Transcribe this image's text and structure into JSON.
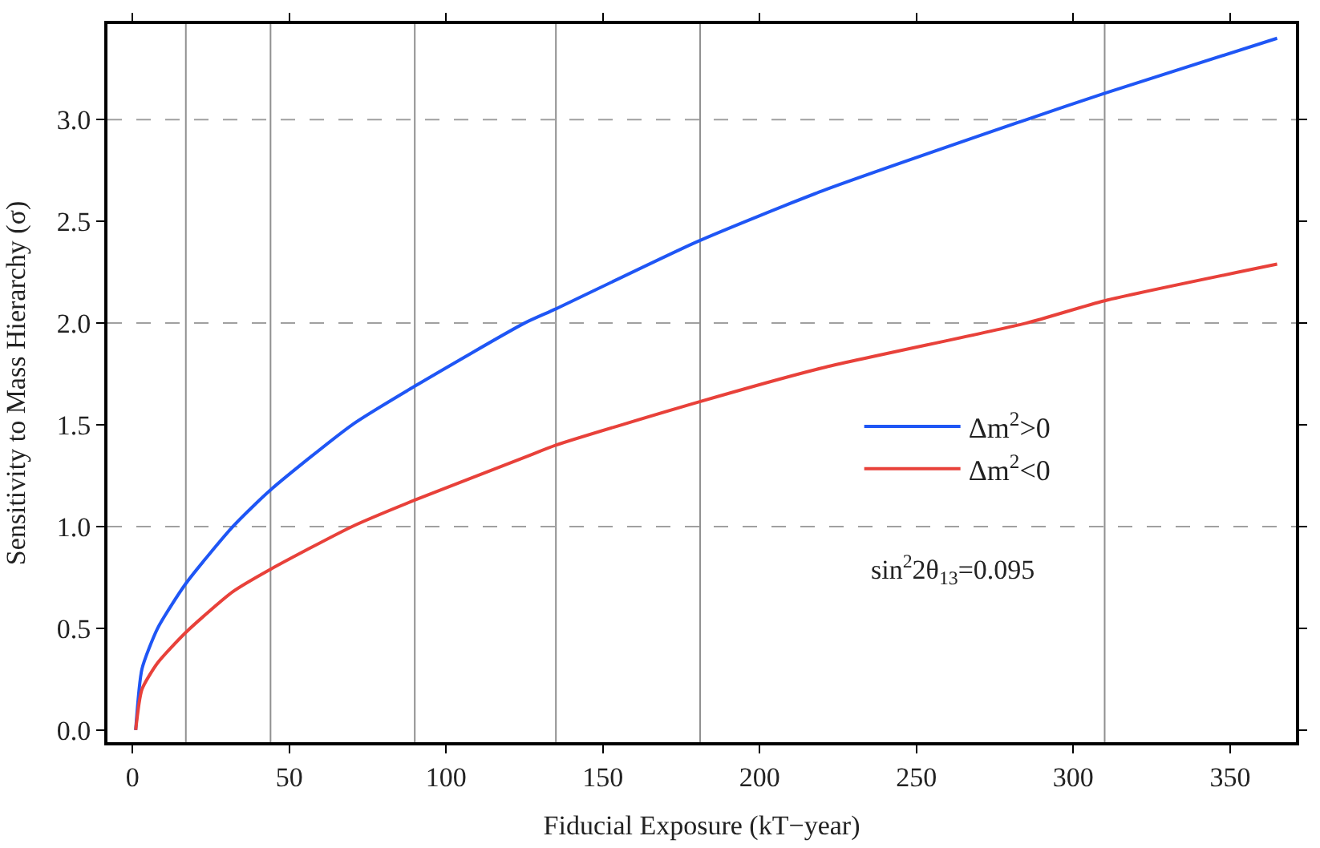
{
  "chart_data": {
    "type": "line",
    "xlabel": "Fiducial Exposure (kT−year)",
    "ylabel": "Sensitivity to Mass Hierarchy (σ)",
    "xlim": [
      -8,
      371
    ],
    "ylim": [
      -0.06,
      3.47
    ],
    "xticks": [
      0,
      50,
      100,
      150,
      200,
      250,
      300,
      350
    ],
    "yticks": [
      {
        "value": 0,
        "label": "0.0"
      },
      0.5,
      {
        "value": 1,
        "label": "1.0"
      },
      1.5,
      {
        "value": 2,
        "label": "2.0"
      },
      2.5,
      {
        "value": 3,
        "label": "3.0"
      }
    ],
    "x": [
      1,
      3,
      8,
      17,
      32,
      44,
      70,
      90,
      125,
      135,
      180,
      220,
      285,
      310,
      365
    ],
    "series": [
      {
        "name": "Δm$^{2}$>0",
        "color": "#1f56f5",
        "values": [
          0,
          0.3,
          0.5,
          0.72,
          1.0,
          1.18,
          1.5,
          1.69,
          2.0,
          2.07,
          2.4,
          2.65,
          3.0,
          3.13,
          3.4
        ]
      },
      {
        "name": "Δm$^{2}$<0",
        "color": "#e8413a",
        "values": [
          0,
          0.2,
          0.33,
          0.48,
          0.68,
          0.79,
          1.0,
          1.13,
          1.34,
          1.4,
          1.61,
          1.78,
          2.0,
          2.11,
          2.29
        ]
      }
    ],
    "ref_lines": [
      {
        "axis": "x",
        "value": 17,
        "color": "#909090",
        "line_style": "solid"
      },
      {
        "axis": "x",
        "value": 44,
        "color": "#909090",
        "line_style": "solid"
      },
      {
        "axis": "x",
        "value": 90,
        "color": "#909090",
        "line_style": "solid"
      },
      {
        "axis": "x",
        "value": 135,
        "color": "#909090",
        "line_style": "solid"
      },
      {
        "axis": "x",
        "value": 181,
        "color": "#909090",
        "line_style": "solid"
      },
      {
        "axis": "x",
        "value": 310,
        "color": "#909090",
        "line_style": "solid"
      },
      {
        "axis": "y",
        "value": 1,
        "color": "#a0a0a0",
        "line_style": "dashed"
      },
      {
        "axis": "y",
        "value": 2,
        "color": "#a0a0a0",
        "line_style": "dashed"
      },
      {
        "axis": "y",
        "value": 3,
        "color": "#a0a0a0",
        "line_style": "dashed"
      }
    ],
    "annotations": [
      "sin$^{2}$2θ$_{13}$=0.095"
    ],
    "legend": "right",
    "grid": false,
    "line_style": "solid",
    "marker": "none"
  }
}
